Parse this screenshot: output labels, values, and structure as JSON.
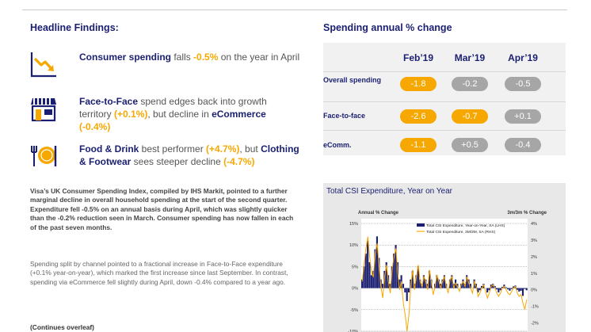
{
  "headline": {
    "title": "Headline Findings:",
    "findings": [
      {
        "icon": "down-trend-chart-icon",
        "bold": "Consumer spending",
        "rest1": " falls ",
        "highlight": "-0.5%",
        "rest2": " on the year in April"
      },
      {
        "icon": "shopfront-icon",
        "bold": "Face-to-Face",
        "rest1": " spend edges back into growth territory ",
        "highlight": "(+0.1%)",
        "rest2": ", but decline in ",
        "bold2": "eCommerce",
        "highlight2": "(-0.4%)"
      },
      {
        "icon": "food-drink-icon",
        "bold": "Food & Drink",
        "rest1": " best performer ",
        "highlight": "(+4.7%)",
        "rest2": ",  but ",
        "bold2": "Clothing & Footwear",
        "rest3": " sees steeper decline ",
        "highlight2": "(-4.7%)"
      }
    ]
  },
  "summary_paragraph": "Visa’s UK Consumer Spending Index, compiled by IHS Markit, pointed to a further marginal decline in overall household spending at the start of the second quarter. Expenditure fell -0.5% on an annual basis during April, which was slightly quicker than the -0.2% reduction seen in March. Consumer spending has now fallen in each of the past seven months.",
  "channel_paragraph": "Spending split by channel pointed to a fractional increase in Face-to-Face expenditure (+0.1% year-on-year), which marked the first increase since last September. In contrast, spending via eCommerce fell slightly during April, down -0.4% compared to a year ago.",
  "continues": "(Continues overleaf)",
  "spending_table": {
    "title": "Spending annual % change",
    "columns": [
      "Feb’19",
      "Mar’19",
      "Apr’19"
    ],
    "rows": [
      {
        "label": "Overall spending",
        "values": [
          "-1.8",
          "-0.2",
          "-0.5"
        ],
        "styles": [
          "orange",
          "grey",
          "grey"
        ]
      },
      {
        "label": "Face-to-face",
        "values": [
          "-2.6",
          "-0.7",
          "+0.1"
        ],
        "styles": [
          "orange",
          "orange",
          "grey"
        ]
      },
      {
        "label": "eComm.",
        "values": [
          "-1.1",
          "+0.5",
          "-0.4"
        ],
        "styles": [
          "orange",
          "grey",
          "grey"
        ]
      }
    ]
  },
  "chart_data": {
    "type": "bar",
    "title": "Total CSI Expenditure, Year on Year",
    "left_axis_label": "Annual % Change",
    "right_axis_label": "3m/3m % Change",
    "left_ticks": [
      "15%",
      "10%",
      "5%",
      "0%",
      "-5%",
      "-10%"
    ],
    "right_ticks": [
      "4%",
      "3%",
      "2%",
      "1%",
      "0%",
      "-1%",
      "-2%"
    ],
    "ylim_left": [
      -10,
      15
    ],
    "ylim_right": [
      -2.5,
      4
    ],
    "legend": [
      "Total CSI Expenditure, Year-on-Year, SA (LHS)",
      "Total CSI Expenditure, 3M/3M, SA (RHS)"
    ],
    "series": [
      {
        "name": "Total CSI Expenditure, Year-on-Year, SA (LHS)",
        "color": "#1a1f71",
        "values": [
          2,
          5,
          8,
          11,
          6,
          3,
          4,
          9,
          12,
          7,
          2,
          1,
          4,
          6,
          3,
          1,
          5,
          8,
          10,
          6,
          2,
          3,
          1,
          -1,
          -3,
          -1,
          2,
          4,
          1,
          3,
          5,
          2,
          1,
          3,
          2,
          1,
          4,
          2,
          0,
          1,
          3,
          2,
          1,
          2,
          3,
          1,
          0,
          2,
          3,
          1,
          2,
          1,
          0,
          1,
          2,
          1,
          3,
          2,
          1,
          0,
          2,
          1,
          -1,
          -0.5,
          0.5,
          1,
          0,
          -1,
          -0.5,
          0.8,
          1,
          0.5,
          -0.3,
          -1,
          -0.5,
          0.3,
          0.8,
          0.2,
          -0.3,
          -0.6,
          -0.2,
          0.4,
          0.6,
          -0.4,
          -0.8,
          -0.6,
          -1.8,
          -0.2,
          -0.5
        ]
      },
      {
        "name": "Total CSI Expenditure, 3M/3M, SA (RHS)",
        "color": "#f7a800",
        "values": [
          0.5,
          1.5,
          2.5,
          3.2,
          2.0,
          1.0,
          0.8,
          2.2,
          2.8,
          1.5,
          0.2,
          -0.5,
          0.8,
          1.5,
          0.5,
          -0.2,
          1.2,
          2.0,
          2.5,
          1.0,
          0.0,
          0.5,
          -0.8,
          -1.5,
          -2.5,
          -1.5,
          0.2,
          1.2,
          0.0,
          0.8,
          1.5,
          0.5,
          0.2,
          0.8,
          0.5,
          0.0,
          1.2,
          0.5,
          -0.3,
          0.2,
          0.9,
          0.5,
          0.1,
          0.5,
          0.8,
          0.2,
          -0.2,
          0.6,
          0.8,
          0.1,
          0.4,
          0.2,
          -0.1,
          0.3,
          0.5,
          0.2,
          0.8,
          0.4,
          0.1,
          -0.2,
          0.5,
          0.2,
          -0.4,
          -0.2,
          0.1,
          0.3,
          -0.1,
          -0.5,
          -0.2,
          0.2,
          0.3,
          0.1,
          -0.2,
          -0.4,
          -0.2,
          0.1,
          0.2,
          0.0,
          -0.2,
          -0.3,
          -0.1,
          0.1,
          0.2,
          -0.2,
          -0.4,
          -0.3,
          -0.8,
          -1.2,
          -0.6
        ]
      }
    ],
    "grid": true,
    "legend_position": "top-center"
  }
}
